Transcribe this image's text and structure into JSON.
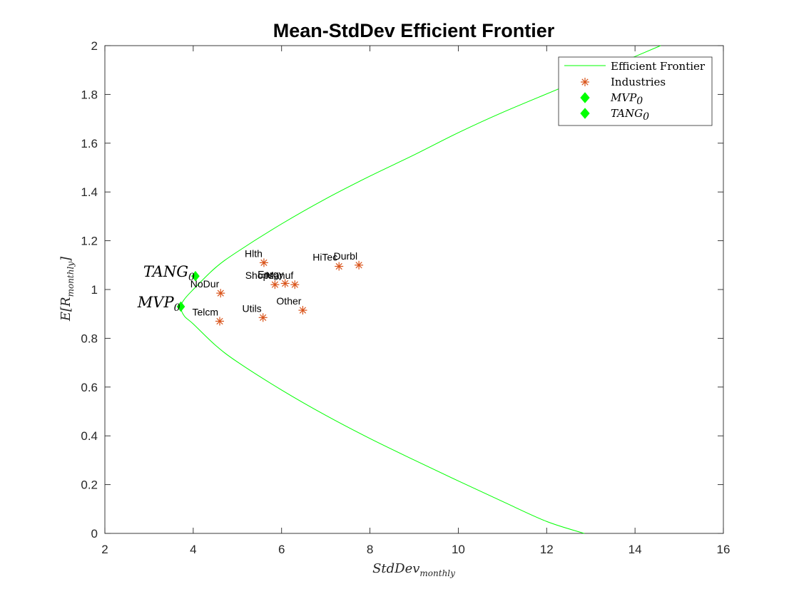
{
  "chart_data": {
    "type": "scatter",
    "title": "Mean-StdDev Efficient Frontier",
    "xlabel": {
      "base": "StdDev",
      "sub": "monthly"
    },
    "ylabel": {
      "base": "E[R",
      "sub": "monthly",
      "tail": "]"
    },
    "xlim": [
      2,
      16
    ],
    "ylim": [
      0,
      2
    ],
    "xticks": [
      2,
      4,
      6,
      8,
      10,
      12,
      14,
      16
    ],
    "xtick_labels": [
      "2",
      "4",
      "6",
      "8",
      "10",
      "12",
      "14",
      "16"
    ],
    "yticks": [
      0,
      0.2,
      0.4,
      0.6,
      0.8,
      1,
      1.2,
      1.4,
      1.6,
      1.8,
      2
    ],
    "ytick_labels": [
      "0",
      "0.2",
      "0.4",
      "0.6",
      "0.8",
      "1",
      "1.2",
      "1.4",
      "1.6",
      "1.8",
      "2"
    ],
    "grid": false,
    "legend_position": "top-right",
    "legend": [
      {
        "text": "Efficient Frontier",
        "marker": "line",
        "italic": false
      },
      {
        "text": "Industries",
        "marker": "asterisk",
        "italic": false
      },
      {
        "text": "MVP",
        "sub": "0",
        "marker": "diamond",
        "italic": true
      },
      {
        "text": "TANG",
        "sub": "0",
        "marker": "diamond",
        "italic": true
      }
    ],
    "colors": {
      "frontier": "#00ff00",
      "industries": "#d95319",
      "special": "#00ff00"
    },
    "frontier": {
      "name": "Efficient Frontier",
      "x": [
        14.58,
        12.5,
        11.0,
        10.0,
        9.0,
        8.0,
        7.0,
        6.0,
        5.0,
        4.5,
        4.0,
        3.8,
        3.72,
        3.8,
        4.0,
        4.5,
        5.0,
        6.0,
        7.0,
        8.0,
        9.0,
        10.0,
        11.0,
        12.0,
        12.85
      ],
      "y": [
        2.0,
        1.84,
        1.726,
        1.643,
        1.552,
        1.465,
        1.372,
        1.269,
        1.155,
        1.089,
        1.0,
        0.96,
        0.928,
        0.891,
        0.859,
        0.772,
        0.703,
        0.588,
        0.484,
        0.389,
        0.301,
        0.215,
        0.131,
        0.049,
        0.0
      ]
    },
    "industries": [
      {
        "label": "NoDur",
        "x": 4.62,
        "y": 0.985
      },
      {
        "label": "Durbl",
        "x": 7.75,
        "y": 1.1
      },
      {
        "label": "Manuf",
        "x": 6.3,
        "y": 1.02
      },
      {
        "label": "Enrgy",
        "x": 6.08,
        "y": 1.025
      },
      {
        "label": "HiTec",
        "x": 7.3,
        "y": 1.095
      },
      {
        "label": "Telcm",
        "x": 4.6,
        "y": 0.87
      },
      {
        "label": "Shops",
        "x": 5.85,
        "y": 1.02
      },
      {
        "label": "Hlth",
        "x": 5.6,
        "y": 1.11
      },
      {
        "label": "Utils",
        "x": 5.58,
        "y": 0.885
      },
      {
        "label": "Other",
        "x": 6.48,
        "y": 0.915
      }
    ],
    "special": [
      {
        "name": "MVP",
        "sub": "0",
        "x": 3.72,
        "y": 0.93
      },
      {
        "name": "TANG",
        "sub": "0",
        "x": 4.05,
        "y": 1.055
      }
    ]
  }
}
